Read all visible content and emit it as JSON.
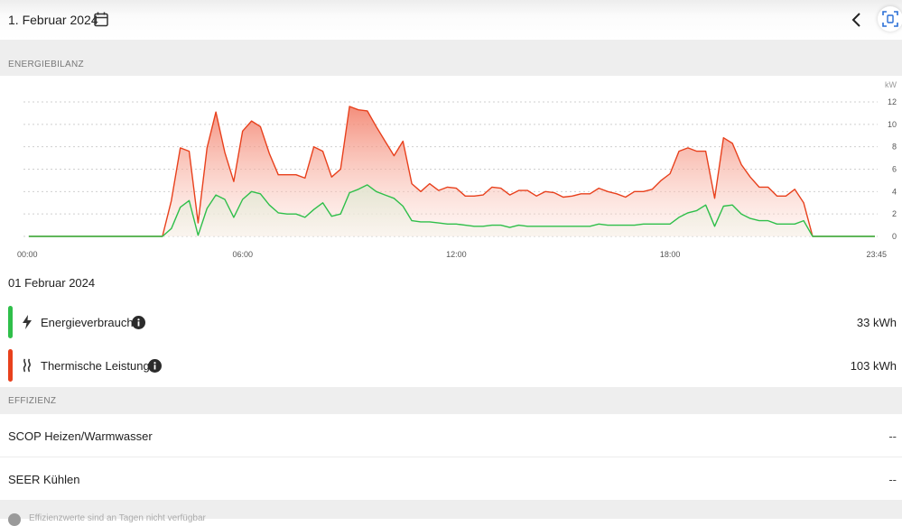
{
  "header": {
    "date": "1. Februar 2024",
    "icons": {
      "calendar": "calendar-icon",
      "back": "chevron-left-icon",
      "scan": "scan-icon"
    }
  },
  "sections": {
    "energy": "ENERGIEBILANZ",
    "efficiency": "EFFIZIENZ"
  },
  "summary": {
    "date": "01 Februar 2024",
    "consumption": {
      "label": "Energieverbrauch",
      "value": "33 kWh",
      "color": "#2fbf4a",
      "icon": "lightning-icon"
    },
    "thermal": {
      "label": "Thermische Leistung",
      "value": "103 kWh",
      "color": "#e8401c",
      "icon": "heat-waves-icon"
    }
  },
  "efficiency": {
    "scop": {
      "label": "SCOP Heizen/Warmwasser",
      "value": "--"
    },
    "seer": {
      "label": "SEER Kühlen",
      "value": "--"
    }
  },
  "footer": {
    "note": "Effizienzwerte sind an Tagen nicht verfügbar"
  },
  "chart_data": {
    "type": "area",
    "y_unit": "kW",
    "x_min": 0,
    "x_max": 23.75,
    "x_ticks": [
      {
        "x": 0,
        "label": "00:00"
      },
      {
        "x": 6,
        "label": "06:00"
      },
      {
        "x": 12,
        "label": "12:00"
      },
      {
        "x": 18,
        "label": "18:00"
      },
      {
        "x": 23.75,
        "label": "23:45"
      }
    ],
    "ylim": [
      0,
      12
    ],
    "y_ticks": [
      0,
      2,
      4,
      6,
      8,
      10,
      12
    ],
    "grid": true,
    "series": [
      {
        "name": "Thermische Leistung",
        "color": "#e8401c",
        "points": [
          [
            0,
            0
          ],
          [
            3.75,
            0
          ],
          [
            4,
            3.2
          ],
          [
            4.25,
            7.9
          ],
          [
            4.5,
            7.6
          ],
          [
            4.75,
            1.2
          ],
          [
            5,
            7.9
          ],
          [
            5.25,
            11.1
          ],
          [
            5.5,
            7.5
          ],
          [
            5.75,
            4.9
          ],
          [
            6,
            9.4
          ],
          [
            6.25,
            10.3
          ],
          [
            6.5,
            9.8
          ],
          [
            6.75,
            7.4
          ],
          [
            7,
            5.5
          ],
          [
            7.25,
            5.5
          ],
          [
            7.5,
            5.5
          ],
          [
            7.75,
            5.2
          ],
          [
            8,
            8
          ],
          [
            8.25,
            7.6
          ],
          [
            8.5,
            5.3
          ],
          [
            8.75,
            6
          ],
          [
            9,
            11.6
          ],
          [
            9.25,
            11.3
          ],
          [
            9.5,
            11.2
          ],
          [
            9.75,
            9.8
          ],
          [
            10,
            8.5
          ],
          [
            10.25,
            7.2
          ],
          [
            10.5,
            8.5
          ],
          [
            10.75,
            4.7
          ],
          [
            11,
            4
          ],
          [
            11.25,
            4.7
          ],
          [
            11.5,
            4.1
          ],
          [
            11.75,
            4.4
          ],
          [
            12,
            4.3
          ],
          [
            12.25,
            3.6
          ],
          [
            12.5,
            3.6
          ],
          [
            12.75,
            3.7
          ],
          [
            13,
            4.4
          ],
          [
            13.25,
            4.3
          ],
          [
            13.5,
            3.7
          ],
          [
            13.75,
            4.1
          ],
          [
            14,
            4.1
          ],
          [
            14.25,
            3.6
          ],
          [
            14.5,
            4
          ],
          [
            14.75,
            3.9
          ],
          [
            15,
            3.5
          ],
          [
            15.25,
            3.6
          ],
          [
            15.5,
            3.8
          ],
          [
            15.75,
            3.8
          ],
          [
            16,
            4.3
          ],
          [
            16.25,
            4
          ],
          [
            16.5,
            3.8
          ],
          [
            16.75,
            3.5
          ],
          [
            17,
            4
          ],
          [
            17.25,
            4
          ],
          [
            17.5,
            4.2
          ],
          [
            17.75,
            5
          ],
          [
            18,
            5.6
          ],
          [
            18.25,
            7.6
          ],
          [
            18.5,
            7.9
          ],
          [
            18.75,
            7.6
          ],
          [
            19,
            7.6
          ],
          [
            19.25,
            3.4
          ],
          [
            19.5,
            8.8
          ],
          [
            19.75,
            8.3
          ],
          [
            20,
            6.4
          ],
          [
            20.25,
            5.3
          ],
          [
            20.5,
            4.4
          ],
          [
            20.75,
            4.4
          ],
          [
            21,
            3.6
          ],
          [
            21.25,
            3.6
          ],
          [
            21.5,
            4.2
          ],
          [
            21.75,
            3
          ],
          [
            22,
            0
          ],
          [
            23.75,
            0
          ]
        ]
      },
      {
        "name": "Energieverbrauch",
        "color": "#2fbf4a",
        "points": [
          [
            0,
            0
          ],
          [
            3.75,
            0
          ],
          [
            4,
            0.7
          ],
          [
            4.25,
            2.6
          ],
          [
            4.5,
            3.2
          ],
          [
            4.75,
            0.1
          ],
          [
            5,
            2.5
          ],
          [
            5.25,
            3.7
          ],
          [
            5.5,
            3.3
          ],
          [
            5.75,
            1.7
          ],
          [
            6,
            3.3
          ],
          [
            6.25,
            4
          ],
          [
            6.5,
            3.8
          ],
          [
            6.75,
            2.8
          ],
          [
            7,
            2.1
          ],
          [
            7.25,
            2
          ],
          [
            7.5,
            2
          ],
          [
            7.75,
            1.7
          ],
          [
            8,
            2.4
          ],
          [
            8.25,
            3
          ],
          [
            8.5,
            1.8
          ],
          [
            8.75,
            2
          ],
          [
            9,
            3.9
          ],
          [
            9.25,
            4.2
          ],
          [
            9.5,
            4.6
          ],
          [
            9.75,
            4
          ],
          [
            10,
            3.7
          ],
          [
            10.25,
            3.4
          ],
          [
            10.5,
            2.7
          ],
          [
            10.75,
            1.4
          ],
          [
            11,
            1.3
          ],
          [
            11.25,
            1.3
          ],
          [
            11.5,
            1.2
          ],
          [
            11.75,
            1.1
          ],
          [
            12,
            1.1
          ],
          [
            12.25,
            1
          ],
          [
            12.5,
            0.9
          ],
          [
            12.75,
            0.9
          ],
          [
            13,
            1
          ],
          [
            13.25,
            1
          ],
          [
            13.5,
            0.8
          ],
          [
            13.75,
            1
          ],
          [
            14,
            0.9
          ],
          [
            14.25,
            0.9
          ],
          [
            14.5,
            0.9
          ],
          [
            14.75,
            0.9
          ],
          [
            15,
            0.9
          ],
          [
            15.25,
            0.9
          ],
          [
            15.5,
            0.9
          ],
          [
            15.75,
            0.9
          ],
          [
            16,
            1.1
          ],
          [
            16.25,
            1
          ],
          [
            16.5,
            1
          ],
          [
            16.75,
            1
          ],
          [
            17,
            1
          ],
          [
            17.25,
            1.1
          ],
          [
            17.5,
            1.1
          ],
          [
            17.75,
            1.1
          ],
          [
            18,
            1.1
          ],
          [
            18.25,
            1.7
          ],
          [
            18.5,
            2.1
          ],
          [
            18.75,
            2.3
          ],
          [
            19,
            2.8
          ],
          [
            19.25,
            0.9
          ],
          [
            19.5,
            2.7
          ],
          [
            19.75,
            2.8
          ],
          [
            20,
            2
          ],
          [
            20.25,
            1.6
          ],
          [
            20.5,
            1.4
          ],
          [
            20.75,
            1.4
          ],
          [
            21,
            1.1
          ],
          [
            21.25,
            1.1
          ],
          [
            21.5,
            1.1
          ],
          [
            21.75,
            1.4
          ],
          [
            22,
            0
          ],
          [
            23.75,
            0
          ]
        ]
      }
    ]
  }
}
